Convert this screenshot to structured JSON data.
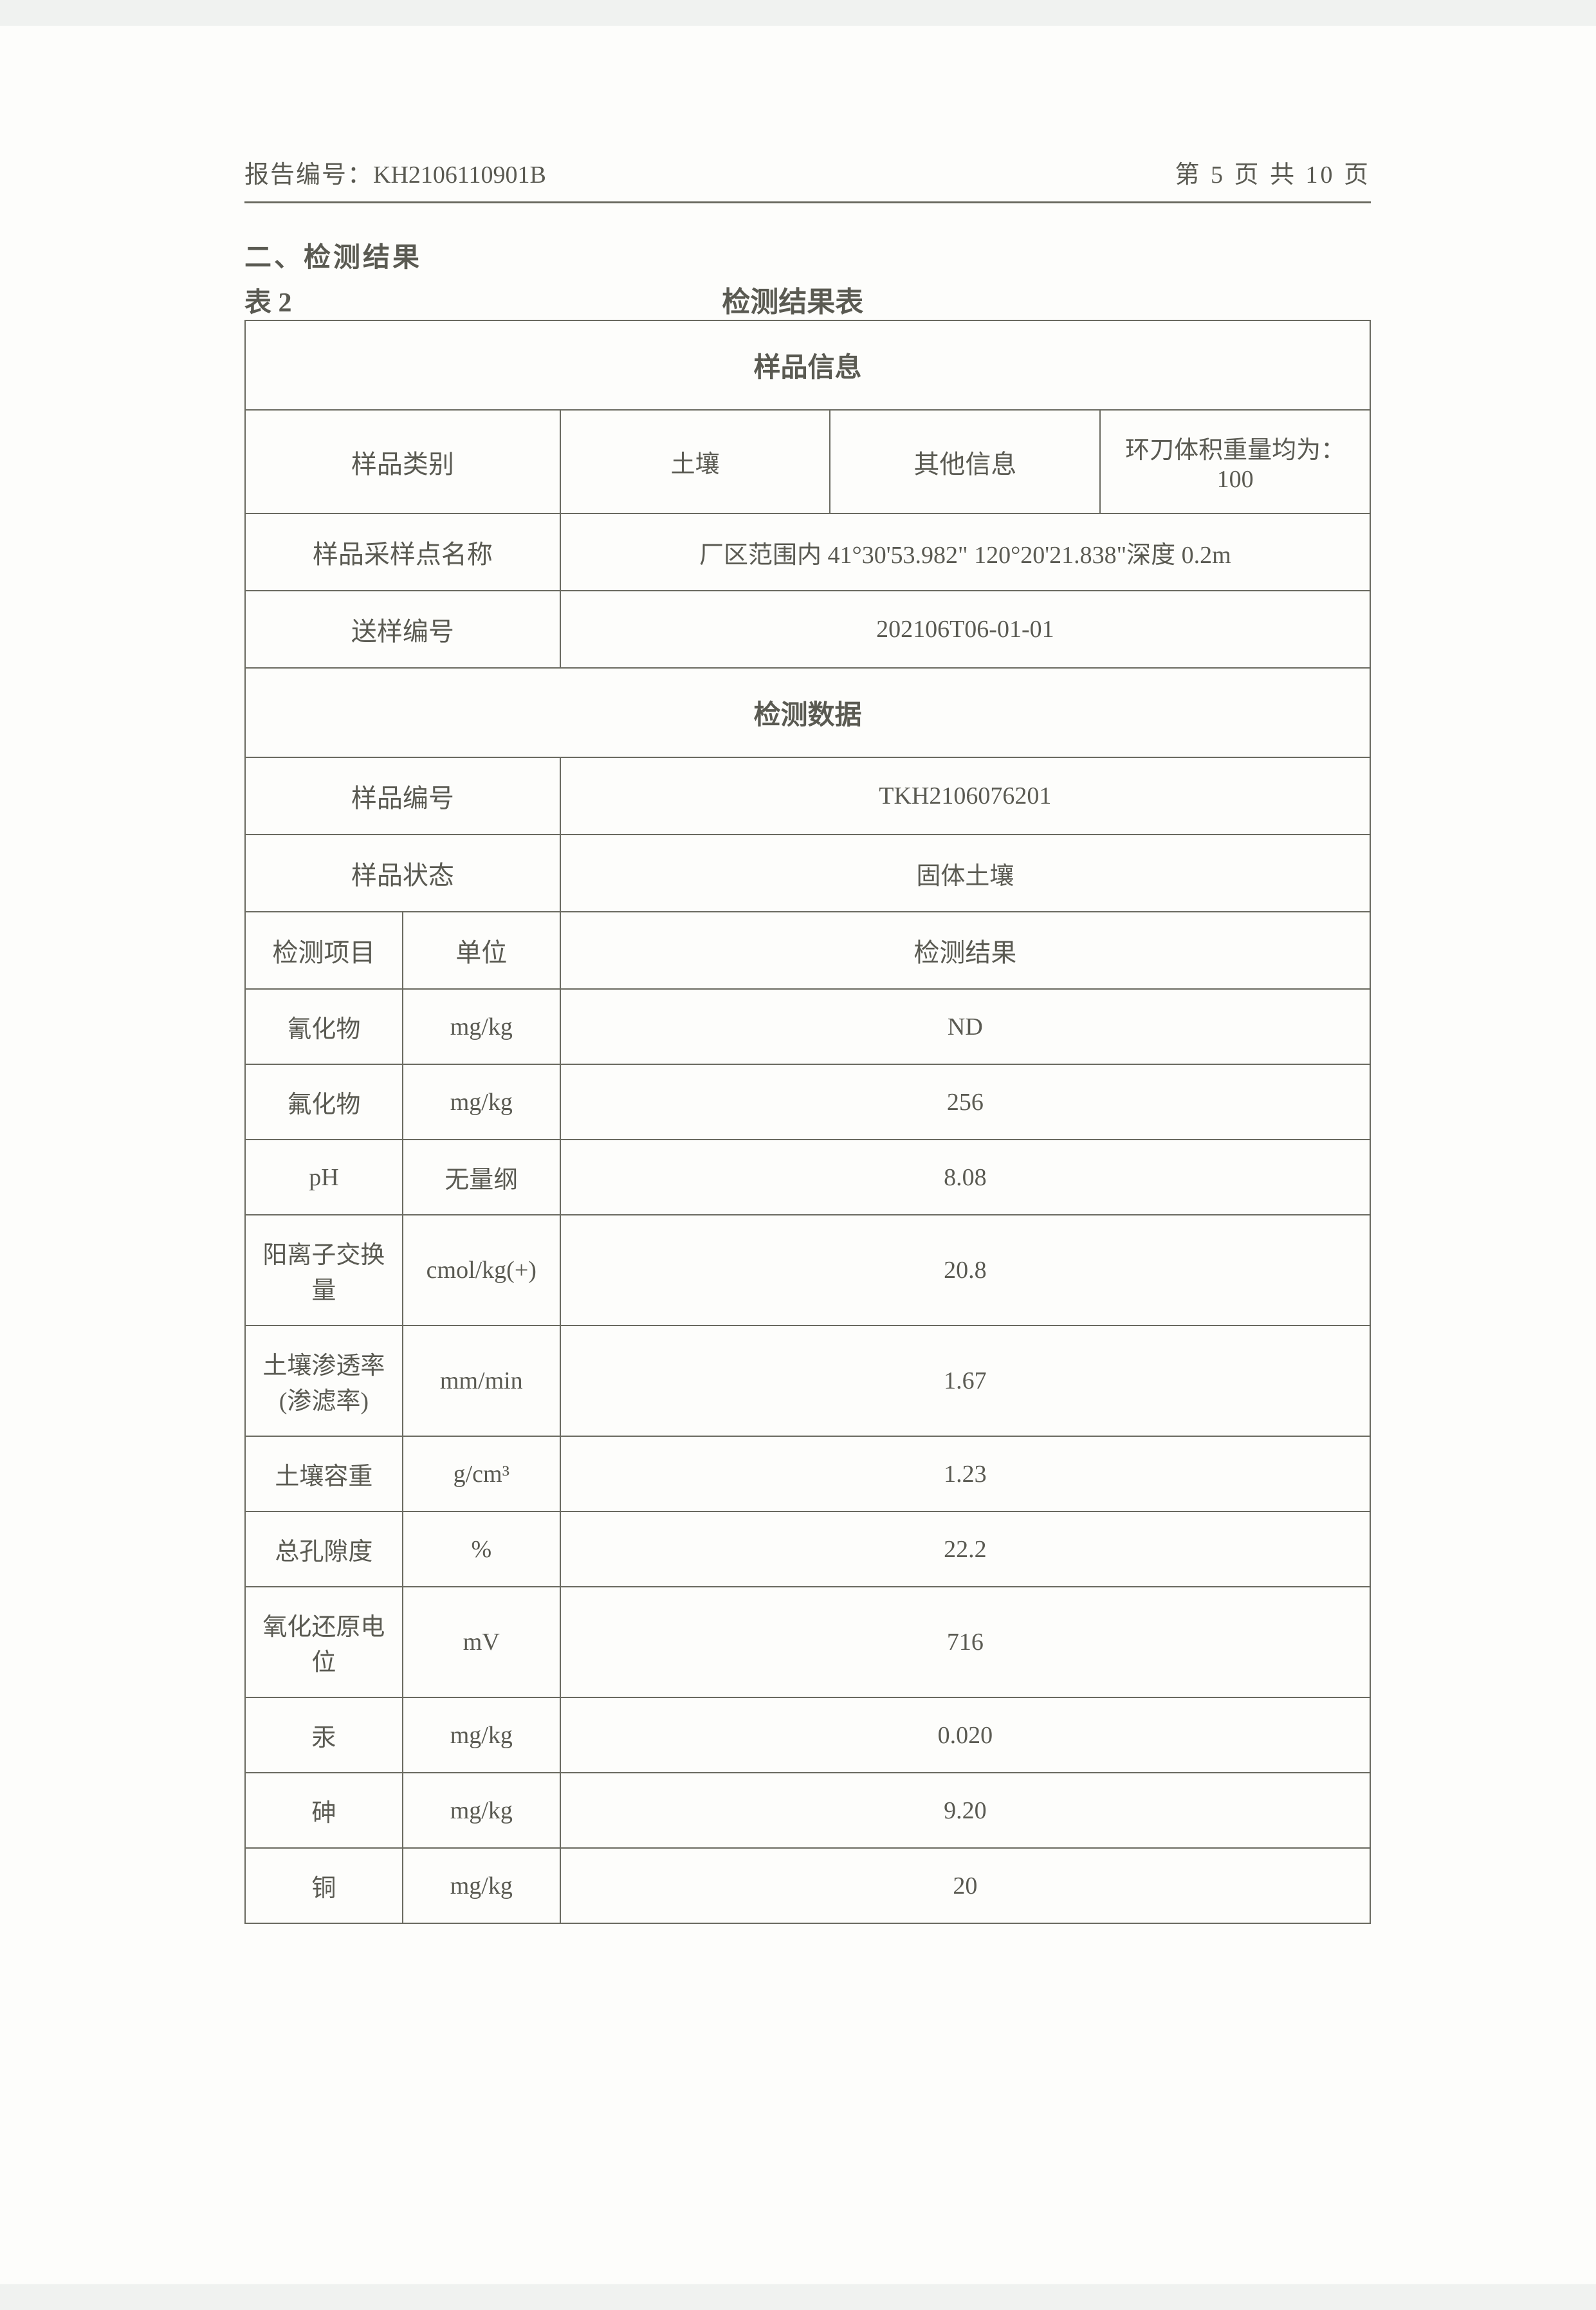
{
  "header": {
    "report_number_label": "报告编号：",
    "report_number": "KH2106110901B",
    "page_label_prefix": "第 ",
    "page_current": "5",
    "page_label_mid": " 页 共 ",
    "page_total": "10",
    "page_label_suffix": " 页"
  },
  "section_title": "二、检测结果",
  "table_label": "表 2",
  "table_caption": "检测结果表",
  "sample_info": {
    "header": "样品信息",
    "category_label": "样品类别",
    "category_value": "土壤",
    "other_info_label": "其他信息",
    "other_info_value": "环刀体积重量均为：100",
    "sampling_point_label": "样品采样点名称",
    "sampling_point_value": "厂区范围内 41°30'53.982\"  120°20'21.838\"深度 0.2m",
    "send_number_label": "送样编号",
    "send_number_value": "202106T06-01-01"
  },
  "test_data": {
    "header": "检测数据",
    "sample_number_label": "样品编号",
    "sample_number_value": "TKH2106076201",
    "sample_state_label": "样品状态",
    "sample_state_value": "固体土壤",
    "item_header": "检测项目",
    "unit_header": "单位",
    "result_header": "检测结果"
  },
  "rows": [
    {
      "item": "氰化物",
      "unit": "mg/kg",
      "result": "ND"
    },
    {
      "item": "氟化物",
      "unit": "mg/kg",
      "result": "256"
    },
    {
      "item": "pH",
      "unit": "无量纲",
      "result": "8.08"
    },
    {
      "item": "阳离子交换量",
      "unit": "cmol/kg(+)",
      "result": "20.8"
    },
    {
      "item": "土壤渗透率(渗滤率)",
      "unit": "mm/min",
      "result": "1.67"
    },
    {
      "item": "土壤容重",
      "unit": "g/cm³",
      "result": "1.23"
    },
    {
      "item": "总孔隙度",
      "unit": "%",
      "result": "22.2"
    },
    {
      "item": "氧化还原电位",
      "unit": "mV",
      "result": "716"
    },
    {
      "item": "汞",
      "unit": "mg/kg",
      "result": "0.020"
    },
    {
      "item": "砷",
      "unit": "mg/kg",
      "result": "9.20"
    },
    {
      "item": "铜",
      "unit": "mg/kg",
      "result": "20"
    }
  ],
  "style": {
    "page_bg": "#fdfdfb",
    "text_color": "#5a5a52",
    "border_color": "#6a6a60",
    "font_family": "SimSun"
  }
}
